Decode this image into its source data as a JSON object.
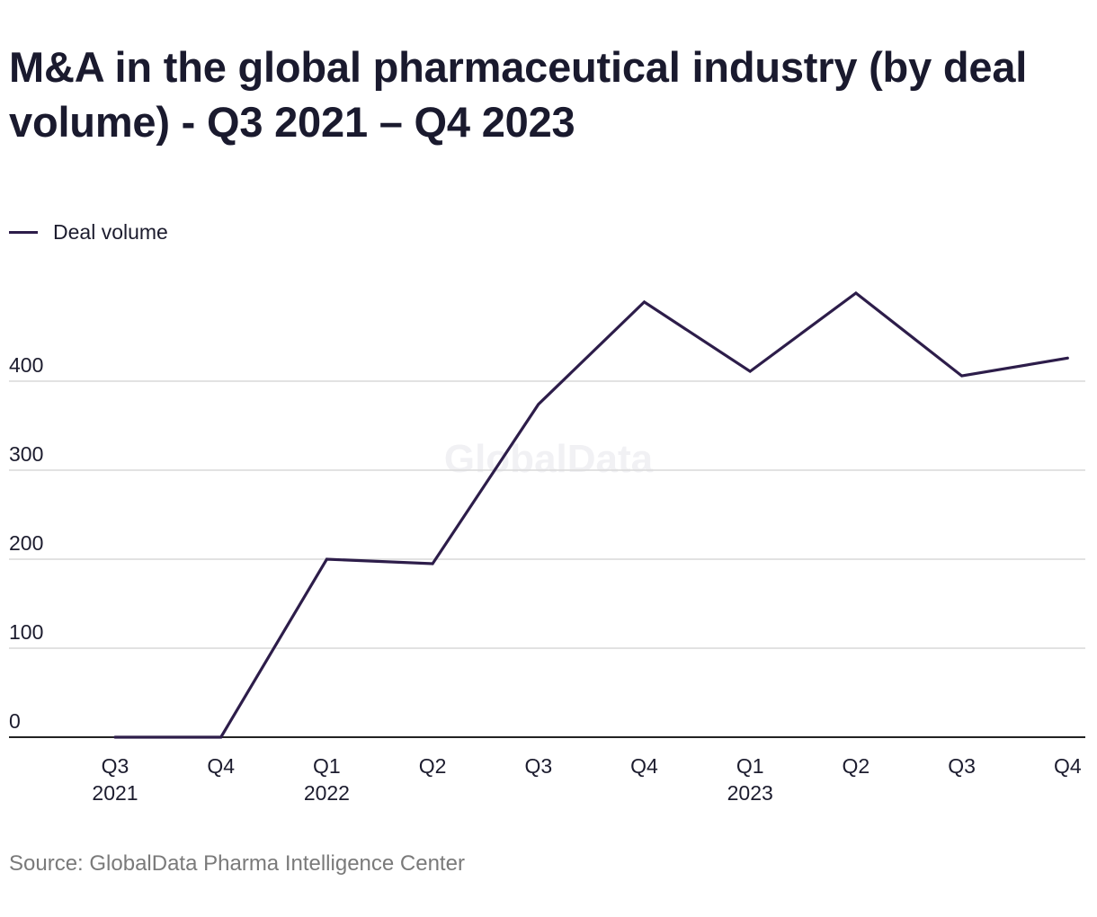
{
  "header": {
    "title": "M&A in the global pharmaceutical industry (by deal volume) - Q3 2021 – Q4 2023"
  },
  "legend": {
    "label": "Deal volume"
  },
  "watermark": "GlobalData",
  "footer": {
    "source": "Source: GlobalData Pharma Intelligence Center"
  },
  "colors": {
    "line": "#2d1d4a",
    "grid": "#d9d9d9",
    "axis": "#222222",
    "text": "#1c1c2e",
    "source_text": "#7a7a7a",
    "watermark": "#f1f1f4"
  },
  "chart_data": {
    "type": "line",
    "categories": [
      "Q3 2021",
      "Q4 2021",
      "Q1 2022",
      "Q2 2022",
      "Q3 2022",
      "Q4 2022",
      "Q1 2023",
      "Q2 2023",
      "Q3 2023",
      "Q4 2023"
    ],
    "tick_labels": [
      [
        "Q3",
        "2021"
      ],
      [
        "Q4"
      ],
      [
        "Q1",
        "2022"
      ],
      [
        "Q2"
      ],
      [
        "Q3"
      ],
      [
        "Q4"
      ],
      [
        "Q1",
        "2023"
      ],
      [
        "Q2"
      ],
      [
        "Q3"
      ],
      [
        "Q4"
      ]
    ],
    "series": [
      {
        "name": "Deal volume",
        "values": [
          0,
          0,
          200,
          195,
          374,
          489,
          411,
          499,
          406,
          426
        ]
      }
    ],
    "yticks": [
      0,
      100,
      200,
      300,
      400
    ],
    "ylim": [
      0,
      500
    ],
    "grid": true,
    "legend_position": "top-left",
    "title": "M&A in the global pharmaceutical industry (by deal volume) - Q3 2021 – Q4 2023",
    "xlabel": "",
    "ylabel": ""
  }
}
